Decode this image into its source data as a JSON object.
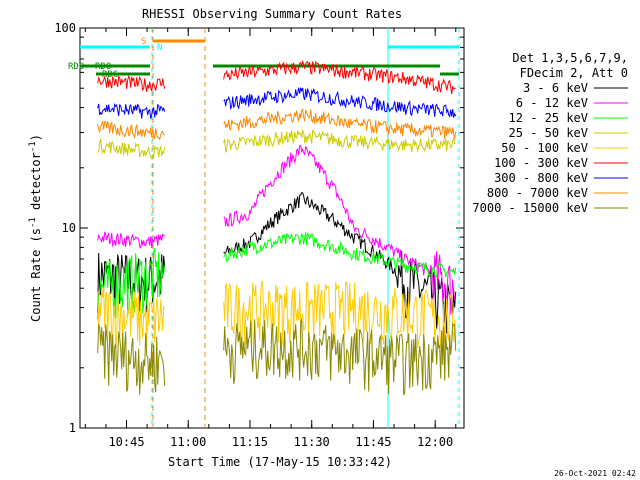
{
  "chart_data": {
    "type": "line",
    "title": "RHESSI Observing Summary Count Rates",
    "xlabel": "Start Time (17-May-15 10:33:42)",
    "ylabel": "Count Rate (s",
    "ylabel_sup": "-1",
    "ylabel_rest": " detector",
    "ylabel_close": ")",
    "y_scale": "log",
    "ylim": [
      1,
      100
    ],
    "xlim": [
      "10:33:42",
      "12:07:00"
    ],
    "x_ticks": [
      "10:45",
      "11:00",
      "11:15",
      "11:30",
      "11:45",
      "12:00"
    ],
    "y_ticks": [
      "1",
      "10",
      "100"
    ],
    "legend_header": [
      "Det 1,3,5,6,7,9,",
      "FDecim 2, Att 0"
    ],
    "timestamp": "26-Oct-2021 02:42",
    "annotations": {
      "saa_label": "S",
      "night_label": "N",
      "rdo_label_1": "RDO",
      "rdo_label_2": "RDO",
      "rdo_label_3": "RDC"
    },
    "series": [
      {
        "name": "3 - 6 keV",
        "color": "#000000",
        "values": [
          5.8,
          5.5,
          6.5,
          8.5,
          14,
          9,
          5.5,
          3.8
        ]
      },
      {
        "name": "6 - 12 keV",
        "color": "#ff00ff",
        "values": [
          9,
          8.5,
          9.5,
          12,
          25,
          10,
          7,
          5
        ]
      },
      {
        "name": "12 - 25 keV",
        "color": "#00ff00",
        "values": [
          5,
          5.8,
          6.5,
          8,
          9,
          7.5,
          6.5,
          6
        ]
      },
      {
        "name": "25 - 50 keV",
        "color": "#cccc00",
        "values": [
          26,
          24,
          25,
          27,
          29,
          27,
          26,
          26
        ]
      },
      {
        "name": "50 - 100 keV",
        "color": "#ffcc00",
        "values": [
          4,
          3.5,
          4,
          4,
          4,
          4,
          3.8,
          3.5
        ]
      },
      {
        "name": "100 - 300 keV",
        "color": "#ff0000",
        "values": [
          55,
          52,
          56,
          60,
          64,
          60,
          56,
          50
        ]
      },
      {
        "name": "300 - 800 keV",
        "color": "#0000ff",
        "values": [
          40,
          38,
          40,
          44,
          47,
          43,
          40,
          38
        ]
      },
      {
        "name": "800 - 7000 keV",
        "color": "#ff8800",
        "values": [
          32,
          30,
          31,
          34,
          37,
          33,
          31,
          30
        ]
      },
      {
        "name": "7000 - 15000 keV",
        "color": "#888800",
        "values": [
          2.5,
          2.2,
          2.4,
          2.6,
          2.6,
          2.4,
          2.2,
          2.5
        ]
      }
    ]
  }
}
